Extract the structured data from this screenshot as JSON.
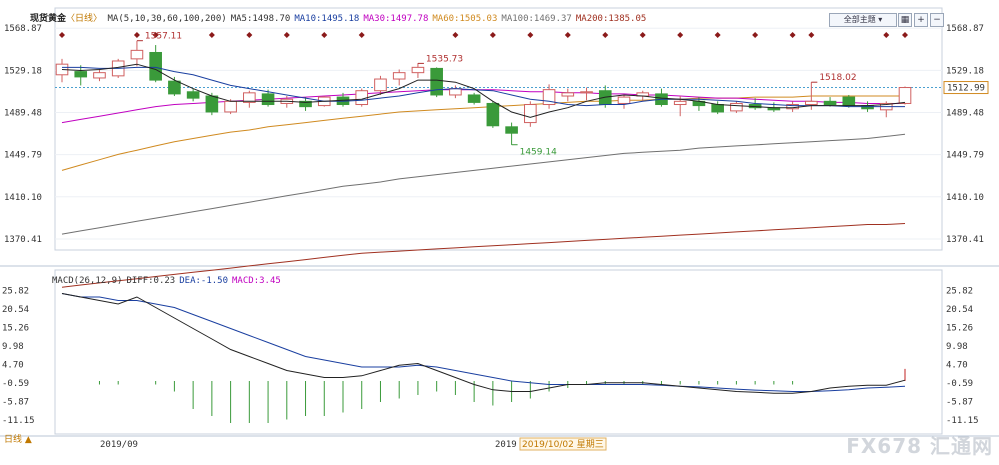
{
  "header": {
    "symbol": "现货黄金",
    "period": "日线",
    "ma_legend": [
      {
        "text": "MA(5,10,30,60,100,200)",
        "color": "#333333"
      },
      {
        "text": "MA5:1498.70",
        "color": "#333333"
      },
      {
        "text": "MA10:1495.18",
        "color": "#1a3fa0"
      },
      {
        "text": "MA30:1497.78",
        "color": "#c000c0"
      },
      {
        "text": "MA60:1505.03",
        "color": "#d08a20"
      },
      {
        "text": "MA100:1469.37",
        "color": "#707070"
      },
      {
        "text": "MA200:1385.05",
        "color": "#a03020"
      }
    ],
    "theme_button": "全部主题",
    "toolbar_icons": [
      "grid-icon",
      "zoom-in-icon",
      "zoom-out-icon",
      "settings-icon"
    ]
  },
  "price_axis": {
    "ticks": [
      "1568.87",
      "1529.18",
      "1489.48",
      "1449.79",
      "1410.10",
      "1370.41"
    ],
    "current_price": "1512.99"
  },
  "macd_panel": {
    "legend": [
      {
        "text": "MACD(26,12,9)",
        "color": "#333333"
      },
      {
        "text": "DIFF:0.23",
        "color": "#333333"
      },
      {
        "text": "DEA:-1.50",
        "color": "#1a3fa0"
      },
      {
        "text": "MACD:3.45",
        "color": "#c000c0"
      }
    ],
    "ticks": [
      "25.82",
      "20.54",
      "15.26",
      "9.98",
      "4.70",
      "-0.59",
      "-5.87",
      "-11.15"
    ]
  },
  "date_axis": {
    "label_left": "2019/09",
    "label_mid": "2019",
    "cursor_date": "2019/10/02 星期三"
  },
  "period_tab": "日线 ▲",
  "watermark": "FX678 汇通网",
  "colors": {
    "up": "#d06060",
    "down": "#3a9a3a",
    "ma5": "#222222",
    "ma10": "#1a3fa0",
    "ma30": "#c000c0",
    "ma60": "#d08a20",
    "ma100": "#707070",
    "ma200": "#a03020"
  },
  "chart_data": {
    "type": "candlestick",
    "ylim": [
      1360,
      1570
    ],
    "annotations": [
      {
        "label": "1557.11",
        "value": 1557.11,
        "index": 4
      },
      {
        "label": "1535.73",
        "value": 1535.73,
        "index": 19
      },
      {
        "label": "1459.14",
        "value": 1459.14,
        "index": 24
      },
      {
        "label": "1518.02",
        "value": 1518.02,
        "index": 40
      }
    ],
    "candles": [
      {
        "o": 1525,
        "h": 1540,
        "l": 1518,
        "c": 1535
      },
      {
        "o": 1528,
        "h": 1534,
        "l": 1515,
        "c": 1523
      },
      {
        "o": 1522,
        "h": 1530,
        "l": 1519,
        "c": 1527
      },
      {
        "o": 1524,
        "h": 1540,
        "l": 1522,
        "c": 1538
      },
      {
        "o": 1540,
        "h": 1557,
        "l": 1533,
        "c": 1548
      },
      {
        "o": 1546,
        "h": 1553,
        "l": 1518,
        "c": 1520
      },
      {
        "o": 1519,
        "h": 1523,
        "l": 1505,
        "c": 1507
      },
      {
        "o": 1509,
        "h": 1512,
        "l": 1500,
        "c": 1503
      },
      {
        "o": 1505,
        "h": 1508,
        "l": 1487,
        "c": 1490
      },
      {
        "o": 1490,
        "h": 1502,
        "l": 1488,
        "c": 1500
      },
      {
        "o": 1499,
        "h": 1510,
        "l": 1494,
        "c": 1508
      },
      {
        "o": 1507,
        "h": 1511,
        "l": 1495,
        "c": 1497
      },
      {
        "o": 1498,
        "h": 1505,
        "l": 1494,
        "c": 1502
      },
      {
        "o": 1500,
        "h": 1504,
        "l": 1491,
        "c": 1495
      },
      {
        "o": 1496,
        "h": 1505,
        "l": 1495,
        "c": 1504
      },
      {
        "o": 1504,
        "h": 1508,
        "l": 1495,
        "c": 1497
      },
      {
        "o": 1497,
        "h": 1512,
        "l": 1495,
        "c": 1510
      },
      {
        "o": 1510,
        "h": 1524,
        "l": 1506,
        "c": 1521
      },
      {
        "o": 1521,
        "h": 1530,
        "l": 1515,
        "c": 1527
      },
      {
        "o": 1527,
        "h": 1536,
        "l": 1522,
        "c": 1532
      },
      {
        "o": 1531,
        "h": 1532,
        "l": 1504,
        "c": 1506
      },
      {
        "o": 1506,
        "h": 1515,
        "l": 1503,
        "c": 1512
      },
      {
        "o": 1506,
        "h": 1508,
        "l": 1497,
        "c": 1499
      },
      {
        "o": 1498,
        "h": 1500,
        "l": 1475,
        "c": 1477
      },
      {
        "o": 1476,
        "h": 1480,
        "l": 1459,
        "c": 1470
      },
      {
        "o": 1480,
        "h": 1500,
        "l": 1476,
        "c": 1497
      },
      {
        "o": 1497,
        "h": 1516,
        "l": 1493,
        "c": 1511
      },
      {
        "o": 1505,
        "h": 1512,
        "l": 1500,
        "c": 1508
      },
      {
        "o": 1508,
        "h": 1513,
        "l": 1501,
        "c": 1509
      },
      {
        "o": 1510,
        "h": 1515,
        "l": 1494,
        "c": 1497
      },
      {
        "o": 1498,
        "h": 1506,
        "l": 1493,
        "c": 1504
      },
      {
        "o": 1505,
        "h": 1510,
        "l": 1500,
        "c": 1508
      },
      {
        "o": 1507,
        "h": 1512,
        "l": 1495,
        "c": 1497
      },
      {
        "o": 1497,
        "h": 1505,
        "l": 1486,
        "c": 1500
      },
      {
        "o": 1500,
        "h": 1504,
        "l": 1491,
        "c": 1496
      },
      {
        "o": 1497,
        "h": 1500,
        "l": 1488,
        "c": 1490
      },
      {
        "o": 1491,
        "h": 1500,
        "l": 1489,
        "c": 1498
      },
      {
        "o": 1497,
        "h": 1503,
        "l": 1492,
        "c": 1494
      },
      {
        "o": 1494,
        "h": 1499,
        "l": 1490,
        "c": 1492
      },
      {
        "o": 1493,
        "h": 1500,
        "l": 1490,
        "c": 1497
      },
      {
        "o": 1497,
        "h": 1518,
        "l": 1492,
        "c": 1500
      },
      {
        "o": 1500,
        "h": 1504,
        "l": 1495,
        "c": 1497
      },
      {
        "o": 1504,
        "h": 1506,
        "l": 1494,
        "c": 1496
      },
      {
        "o": 1496,
        "h": 1500,
        "l": 1490,
        "c": 1493
      },
      {
        "o": 1492,
        "h": 1500,
        "l": 1485,
        "c": 1498
      },
      {
        "o": 1498,
        "h": 1514,
        "l": 1497,
        "c": 1513
      }
    ],
    "ma5": [
      1530,
      1529,
      1530,
      1532,
      1535,
      1530,
      1520,
      1512,
      1505,
      1500,
      1500,
      1500,
      1500,
      1499,
      1500,
      1501,
      1502,
      1507,
      1512,
      1520,
      1520,
      1518,
      1512,
      1500,
      1490,
      1485,
      1490,
      1494,
      1500,
      1504,
      1506,
      1505,
      1503,
      1502,
      1500,
      1497,
      1496,
      1495,
      1494,
      1494,
      1496,
      1496,
      1496,
      1496,
      1497,
      1499
    ],
    "ma10": [
      1532,
      1532,
      1531,
      1531,
      1532,
      1532,
      1528,
      1525,
      1520,
      1515,
      1512,
      1509,
      1506,
      1503,
      1500,
      1500,
      1501,
      1503,
      1505,
      1508,
      1511,
      1512,
      1511,
      1510,
      1506,
      1502,
      1500,
      1497,
      1496,
      1497,
      1497,
      1500,
      1502,
      1502,
      1502,
      1501,
      1500,
      1498,
      1497,
      1496,
      1496,
      1496,
      1495,
      1495,
      1495,
      1495
    ],
    "ma30": [
      1480,
      1483,
      1486,
      1489,
      1492,
      1495,
      1497,
      1498,
      1499,
      1500,
      1501,
      1502,
      1503,
      1504,
      1505,
      1506,
      1507,
      1508,
      1509,
      1510,
      1511,
      1511,
      1511,
      1511,
      1510,
      1509,
      1509,
      1508,
      1508,
      1507,
      1507,
      1506,
      1506,
      1505,
      1504,
      1503,
      1503,
      1502,
      1501,
      1500,
      1500,
      1499,
      1499,
      1498,
      1498,
      1498
    ],
    "ma60": [
      1435,
      1440,
      1445,
      1450,
      1454,
      1458,
      1462,
      1465,
      1468,
      1471,
      1473,
      1476,
      1478,
      1480,
      1482,
      1484,
      1486,
      1488,
      1490,
      1491,
      1492,
      1493,
      1494,
      1495,
      1496,
      1497,
      1498,
      1499,
      1500,
      1500,
      1501,
      1501,
      1502,
      1502,
      1503,
      1503,
      1503,
      1504,
      1504,
      1504,
      1505,
      1505,
      1505,
      1505,
      1505,
      1505
    ],
    "ma100": [
      1375,
      1378,
      1381,
      1384,
      1387,
      1390,
      1393,
      1396,
      1399,
      1402,
      1405,
      1408,
      1411,
      1414,
      1417,
      1420,
      1422,
      1424,
      1427,
      1429,
      1431,
      1433,
      1435,
      1437,
      1439,
      1441,
      1443,
      1445,
      1447,
      1449,
      1451,
      1452,
      1453,
      1454,
      1456,
      1457,
      1458,
      1459,
      1460,
      1461,
      1462,
      1463,
      1464,
      1465,
      1467,
      1469
    ],
    "ma200": [
      1325,
      1327,
      1329,
      1331,
      1333,
      1335,
      1337,
      1339,
      1341,
      1343,
      1345,
      1347,
      1349,
      1351,
      1353,
      1355,
      1357,
      1358,
      1359,
      1360,
      1361,
      1362,
      1363,
      1364,
      1365,
      1366,
      1367,
      1368,
      1369,
      1370,
      1371,
      1372,
      1373,
      1374,
      1375,
      1376,
      1377,
      1378,
      1379,
      1380,
      1381,
      1382,
      1383,
      1384,
      1384,
      1385
    ],
    "macd_ylim": [
      -14,
      28
    ],
    "diff": [
      25,
      24,
      23,
      22,
      24,
      21,
      18,
      15,
      12,
      9,
      7,
      5,
      3,
      2,
      1,
      1,
      1.5,
      3,
      4.5,
      5,
      3,
      1,
      -1,
      -2.5,
      -3,
      -3,
      -2,
      -1,
      -1,
      -0.5,
      -0.5,
      -0.5,
      -1,
      -1.5,
      -2,
      -2.5,
      -3,
      -3.2,
      -3.5,
      -3.5,
      -3,
      -2,
      -1.5,
      -1.2,
      -1.2,
      0.23
    ],
    "dea": [
      25,
      24,
      24,
      23,
      23,
      22,
      21,
      19,
      17,
      15,
      13,
      11,
      9,
      7,
      6,
      5,
      4,
      4,
      4,
      4.5,
      4,
      3,
      2,
      1,
      0,
      -0.5,
      -1,
      -1,
      -1,
      -1,
      -1,
      -1,
      -1.2,
      -1.5,
      -1.7,
      -2,
      -2.3,
      -2.6,
      -2.8,
      -3,
      -3,
      -2.8,
      -2.5,
      -2,
      -1.8,
      -1.5
    ],
    "hist": [
      0,
      0,
      -1,
      -1,
      0,
      -1,
      -3,
      -8,
      -10,
      -12,
      -12,
      -12,
      -11,
      -10,
      -10,
      -9,
      -8,
      -6,
      -5,
      -4,
      -3,
      -4,
      -6,
      -7,
      -6,
      -5,
      -3,
      -2,
      -1,
      -1,
      -1,
      -1,
      -1,
      -1,
      -1,
      -1,
      -1,
      -1,
      -1,
      -1,
      0,
      0,
      0,
      0,
      0,
      3.45
    ]
  }
}
